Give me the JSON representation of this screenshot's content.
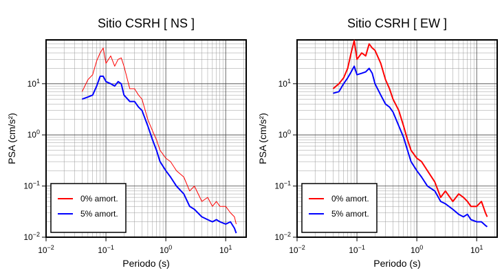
{
  "chart_data": [
    {
      "type": "line",
      "title": "Sitio CSRH [ NS ]",
      "xlabel": "Periodo (s)",
      "ylabel": "PSA (cm/s²)",
      "log_scale": true,
      "grid": true,
      "xlim": [
        0.01,
        22
      ],
      "ylim": [
        0.01,
        72
      ],
      "xticks": [
        {
          "value": 0.01,
          "label": "10",
          "sup": "−2"
        },
        {
          "value": 0.1,
          "label": "10",
          "sup": "−1"
        },
        {
          "value": 1,
          "label": "10",
          "sup": "0"
        },
        {
          "value": 10,
          "label": "10",
          "sup": "1"
        }
      ],
      "yticks": [
        {
          "value": 0.01,
          "label": "10",
          "sup": "−2"
        },
        {
          "value": 0.1,
          "label": "10",
          "sup": "−1"
        },
        {
          "value": 1,
          "label": "10",
          "sup": "0"
        },
        {
          "value": 10,
          "label": "10",
          "sup": "1"
        }
      ],
      "xminor": [
        0.02,
        0.03,
        0.04,
        0.05,
        0.06,
        0.07,
        0.08,
        0.09,
        0.2,
        0.3,
        0.4,
        0.5,
        0.6,
        0.7,
        0.8,
        0.9,
        2,
        3,
        4,
        5,
        6,
        7,
        8,
        9,
        20
      ],
      "yminor": [
        0.02,
        0.03,
        0.04,
        0.05,
        0.06,
        0.07,
        0.08,
        0.09,
        0.2,
        0.3,
        0.4,
        0.5,
        0.6,
        0.7,
        0.8,
        0.9,
        2,
        3,
        4,
        5,
        6,
        7,
        8,
        9,
        20,
        30,
        40,
        50,
        60,
        70
      ],
      "x": [
        0.04,
        0.05,
        0.06,
        0.07,
        0.08,
        0.09,
        0.1,
        0.12,
        0.14,
        0.16,
        0.18,
        0.2,
        0.25,
        0.3,
        0.35,
        0.4,
        0.5,
        0.6,
        0.7,
        0.8,
        1.0,
        1.2,
        1.5,
        2,
        2.5,
        3,
        4,
        5,
        6,
        7,
        8,
        10,
        12,
        14,
        15
      ],
      "legend": "lower left",
      "series": [
        {
          "name": "0% amort.",
          "color": "#ff0000",
          "width": 1,
          "values": [
            7,
            12,
            15,
            28,
            40,
            50,
            25,
            35,
            22,
            30,
            32,
            22,
            8,
            8,
            6,
            5,
            2,
            1.2,
            0.8,
            0.5,
            0.35,
            0.3,
            0.2,
            0.15,
            0.08,
            0.1,
            0.05,
            0.06,
            0.04,
            0.05,
            0.04,
            0.04,
            0.03,
            0.025,
            0.018
          ]
        },
        {
          "name": "5% amort.",
          "color": "#0000ff",
          "width": 2,
          "values": [
            5,
            5.5,
            6,
            9,
            14,
            14,
            11,
            10,
            9,
            11,
            10,
            6,
            4.5,
            4.5,
            3.5,
            3,
            1.5,
            0.8,
            0.5,
            0.3,
            0.2,
            0.15,
            0.1,
            0.07,
            0.04,
            0.035,
            0.025,
            0.022,
            0.02,
            0.022,
            0.02,
            0.018,
            0.02,
            0.015,
            0.012
          ]
        }
      ]
    },
    {
      "type": "line",
      "title": "Sitio CSRH [ EW ]",
      "xlabel": "Periodo (s)",
      "ylabel": "PSA (cm/s²)",
      "log_scale": true,
      "grid": true,
      "xlim": [
        0.01,
        22
      ],
      "ylim": [
        0.01,
        72
      ],
      "xticks": [
        {
          "value": 0.01,
          "label": "10",
          "sup": "−2"
        },
        {
          "value": 0.1,
          "label": "10",
          "sup": "−1"
        },
        {
          "value": 1,
          "label": "10",
          "sup": "0"
        },
        {
          "value": 10,
          "label": "10",
          "sup": "1"
        }
      ],
      "yticks": [
        {
          "value": 0.01,
          "label": "10",
          "sup": "−2"
        },
        {
          "value": 0.1,
          "label": "10",
          "sup": "−1"
        },
        {
          "value": 1,
          "label": "10",
          "sup": "0"
        },
        {
          "value": 10,
          "label": "10",
          "sup": "1"
        }
      ],
      "xminor": [
        0.02,
        0.03,
        0.04,
        0.05,
        0.06,
        0.07,
        0.08,
        0.09,
        0.2,
        0.3,
        0.4,
        0.5,
        0.6,
        0.7,
        0.8,
        0.9,
        2,
        3,
        4,
        5,
        6,
        7,
        8,
        9,
        20
      ],
      "yminor": [
        0.02,
        0.03,
        0.04,
        0.05,
        0.06,
        0.07,
        0.08,
        0.09,
        0.2,
        0.3,
        0.4,
        0.5,
        0.6,
        0.7,
        0.8,
        0.9,
        2,
        3,
        4,
        5,
        6,
        7,
        8,
        9,
        20,
        30,
        40,
        50,
        60,
        70
      ],
      "x": [
        0.04,
        0.05,
        0.06,
        0.07,
        0.08,
        0.09,
        0.1,
        0.12,
        0.14,
        0.16,
        0.18,
        0.2,
        0.25,
        0.3,
        0.35,
        0.4,
        0.5,
        0.6,
        0.7,
        0.8,
        1.0,
        1.2,
        1.5,
        2,
        2.5,
        3,
        4,
        5,
        6,
        7,
        8,
        10,
        12,
        14,
        15
      ],
      "legend": "lower left",
      "series": [
        {
          "name": "0% amort.",
          "color": "#ff0000",
          "width": 2,
          "values": [
            8,
            10,
            13,
            20,
            40,
            70,
            30,
            40,
            35,
            60,
            50,
            45,
            25,
            12,
            8,
            5,
            3,
            1.5,
            0.8,
            0.5,
            0.35,
            0.3,
            0.2,
            0.12,
            0.06,
            0.08,
            0.05,
            0.07,
            0.06,
            0.05,
            0.04,
            0.04,
            0.05,
            0.03,
            0.025
          ]
        },
        {
          "name": "5% amort.",
          "color": "#0000ff",
          "width": 2,
          "values": [
            6.5,
            7,
            10,
            13,
            17,
            22,
            15,
            16,
            17,
            20,
            16,
            10,
            6,
            4,
            3.5,
            2.8,
            1.5,
            0.9,
            0.5,
            0.3,
            0.2,
            0.15,
            0.1,
            0.08,
            0.05,
            0.045,
            0.035,
            0.028,
            0.025,
            0.028,
            0.022,
            0.02,
            0.02,
            0.017,
            0.016
          ]
        }
      ]
    }
  ]
}
